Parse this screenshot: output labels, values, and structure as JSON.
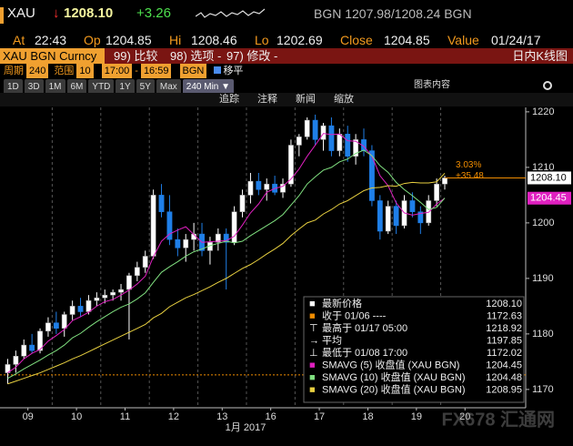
{
  "header": {
    "symbol": "XAU",
    "arrow": "↓",
    "price": "1208.10",
    "change": "+3.26",
    "quote": "BGN 1207.98/1208.24 BGN"
  },
  "stats": [
    {
      "label": "At",
      "value": "22:43"
    },
    {
      "label": "Op",
      "value": "1204.85"
    },
    {
      "label": "Hi",
      "value": "1208.46"
    },
    {
      "label": "Lo",
      "value": "1202.69"
    },
    {
      "label": "Close",
      "value": "1204.85"
    },
    {
      "label": "Value",
      "value": "01/24/17"
    }
  ],
  "toolbar": {
    "security": "XAU BGN Curncy",
    "items": [
      "99) 比较",
      "98) 选项 -",
      "97) 修改 -"
    ],
    "chart_name": "日内K线图"
  },
  "settings": {
    "period_label": "周期",
    "period": "240",
    "range_label": "范围",
    "range": "10",
    "start": "17:00",
    "dash": "-",
    "end": "16:59",
    "tz": "BGN",
    "smooth": "移平"
  },
  "ranges": [
    "1D",
    "3D",
    "1M",
    "6M",
    "YTD",
    "1Y",
    "5Y",
    "Max",
    "240 Min ▼"
  ],
  "chart_content": "图表内容",
  "actions": [
    "追踪",
    "注释",
    "新闻",
    "缩放"
  ],
  "watermark": "FX678 汇通网",
  "chart_data": {
    "type": "candlestick",
    "categories": [
      null,
      null,
      null,
      null,
      null,
      null,
      null,
      null,
      null,
      null,
      null,
      null,
      null,
      null,
      null,
      null,
      null,
      null,
      null,
      null,
      null,
      null,
      null,
      null,
      null,
      null,
      null,
      null,
      null,
      null,
      null,
      null,
      null,
      null,
      null,
      null,
      null,
      null,
      null,
      null,
      null,
      null,
      null,
      null,
      null,
      null,
      null,
      null,
      null,
      null,
      null,
      null,
      null,
      null,
      null
    ],
    "open": [
      1173,
      1174.5,
      1176,
      1178,
      1177,
      1180.5,
      1182,
      1181,
      1183.5,
      1185,
      1184,
      1186,
      1186.5,
      1187,
      1187.5,
      1188,
      1190.5,
      1192,
      1194,
      1205,
      1202,
      1197,
      1195.5,
      1197,
      1198,
      1195,
      1196.5,
      1198,
      1196.5,
      1202,
      1205,
      1207.5,
      1206,
      1207,
      1205.5,
      1207,
      1214,
      1215.5,
      1218.5,
      1215,
      1217.5,
      1213,
      1216,
      1212,
      1215,
      1213,
      1204,
      1198.5,
      1203,
      1199.5,
      1204,
      1202,
      1200,
      1204,
      1207
    ],
    "high": [
      1175.5,
      1177,
      1179,
      1180,
      1181,
      1183,
      1184,
      1184,
      1186,
      1186.5,
      1187,
      1187.5,
      1188,
      1188,
      1189,
      1191,
      1193,
      1195,
      1206,
      1207,
      1205,
      1199,
      1198,
      1200,
      1200,
      1197.5,
      1199,
      1199,
      1203,
      1206,
      1209,
      1209,
      1208,
      1208.5,
      1208,
      1215,
      1216,
      1219,
      1219.5,
      1218,
      1219,
      1217,
      1217.5,
      1216,
      1217,
      1214,
      1205,
      1204,
      1204,
      1205,
      1205.5,
      1203,
      1205,
      1208,
      1208.5
    ],
    "low": [
      1171,
      1173,
      1175.5,
      1176.5,
      1176.5,
      1179.5,
      1180,
      1179.5,
      1182.5,
      1183,
      1183.5,
      1185,
      1185.5,
      1186,
      1186,
      1179,
      1189.5,
      1191,
      1193.5,
      1201,
      1196,
      1194,
      1193,
      1195,
      1194,
      1192.5,
      1195,
      1188,
      1196,
      1201,
      1203.5,
      1205,
      1204,
      1205,
      1204.5,
      1206.5,
      1212,
      1215,
      1214,
      1213,
      1212,
      1212,
      1211,
      1210.5,
      1212,
      1203,
      1197,
      1198,
      1198,
      1199,
      1201,
      1198,
      1199.5,
      1203,
      1206
    ],
    "close": [
      1174.5,
      1176,
      1178,
      1177,
      1180.5,
      1182,
      1181,
      1183.5,
      1185,
      1184,
      1186,
      1186.5,
      1187,
      1187.5,
      1188,
      1190.5,
      1192,
      1194,
      1205,
      1202,
      1197,
      1195.5,
      1197,
      1198,
      1195,
      1196.5,
      1198,
      1196.5,
      1202,
      1205,
      1207.5,
      1206,
      1207,
      1205.5,
      1207,
      1214,
      1215.5,
      1218.5,
      1215,
      1217.5,
      1213,
      1216,
      1212,
      1215,
      1213,
      1204,
      1198.5,
      1203,
      1199.5,
      1204,
      1202,
      1200,
      1204,
      1207,
      1208.1
    ],
    "up_color": "#ffffff",
    "down_color": "#1f7fe8",
    "series": [
      {
        "name": "SMAVG (5) 收盘值 (XAU BGN)",
        "color": "#e020c0",
        "values": [
          1173,
          1174,
          1175.5,
          1176.5,
          1177.2,
          1178.7,
          1179.7,
          1180.8,
          1182.4,
          1183.1,
          1183.9,
          1185,
          1185.8,
          1186.2,
          1187,
          1187.9,
          1189,
          1190.4,
          1193.9,
          1196.7,
          1198,
          1198.7,
          1199.3,
          1197.9,
          1196.5,
          1196.6,
          1196.7,
          1196.8,
          1197.6,
          1199.6,
          1201.8,
          1203.4,
          1205.5,
          1206.2,
          1206.6,
          1207.9,
          1209.7,
          1212,
          1214,
          1216.1,
          1215.9,
          1216,
          1214.8,
          1214.7,
          1213.8,
          1212,
          1208.5,
          1206.7,
          1203.6,
          1201.8,
          1201.4,
          1201.7,
          1201.9,
          1203.4,
          1204.45
        ]
      },
      {
        "name": "SMAVG (10) 收盘值 (XAU BGN)",
        "color": "#80e080",
        "values": [
          1172,
          1172.8,
          1173.7,
          1174.5,
          1175.3,
          1176.2,
          1177,
          1178,
          1179.3,
          1180.1,
          1181.2,
          1182.2,
          1183.1,
          1184,
          1184.8,
          1185.4,
          1186.3,
          1187.4,
          1189.3,
          1191.1,
          1192.1,
          1193,
          1194,
          1194.8,
          1195.3,
          1195.9,
          1196.3,
          1196.7,
          1196.4,
          1196.7,
          1197.7,
          1198.6,
          1199.5,
          1200.4,
          1201.5,
          1203.2,
          1204.9,
          1207,
          1208.3,
          1209.5,
          1210,
          1211,
          1211.5,
          1212.5,
          1213.1,
          1212.1,
          1210.3,
          1209.1,
          1207.3,
          1206,
          1204.9,
          1203.7,
          1202.4,
          1202.8,
          1204.48
        ]
      },
      {
        "name": "SMAVG (20) 收盘值 (XAU BGN)",
        "color": "#e8d040",
        "values": [
          1171,
          1171.5,
          1172,
          1172.5,
          1173,
          1173.6,
          1174.2,
          1174.8,
          1175.5,
          1176.1,
          1176.8,
          1177.5,
          1178.2,
          1178.9,
          1179.6,
          1180.3,
          1181,
          1181.7,
          1182.9,
          1183.7,
          1184.9,
          1185.7,
          1186.5,
          1187.1,
          1187.8,
          1188.5,
          1189.3,
          1190,
          1190.9,
          1191.8,
          1192.5,
          1193.4,
          1194.4,
          1195.3,
          1196.3,
          1197.7,
          1198.9,
          1200,
          1200.5,
          1201.6,
          1202.4,
          1203.4,
          1204,
          1204.9,
          1205.8,
          1206.3,
          1206.4,
          1206.7,
          1206.6,
          1207.1,
          1207.3,
          1207.2,
          1207.2,
          1207.4,
          1208.95
        ]
      }
    ],
    "ref_line": 1172.63,
    "ref_color": "#f08c00",
    "ylim": [
      1166.7,
      1220.8
    ],
    "yticks": [
      1170,
      1180,
      1190,
      1200,
      1210,
      1220
    ],
    "xlim": [
      -0.5,
      64
    ],
    "xticks": [
      {
        "value": 2.5,
        "label": "09"
      },
      {
        "value": 8.5,
        "label": "10"
      },
      {
        "value": 14.5,
        "label": "11"
      },
      {
        "value": 20.5,
        "label": "12"
      },
      {
        "value": 26.5,
        "label": "13"
      },
      {
        "value": 32.5,
        "label": "16"
      },
      {
        "value": 38.5,
        "label": "17"
      },
      {
        "value": 44.5,
        "label": "18"
      },
      {
        "value": 50.5,
        "label": "19"
      },
      {
        "value": 56.5,
        "label": "20"
      }
    ],
    "xlabel": "1月 2017",
    "annotations": [
      "3.03%",
      "+35.48"
    ],
    "legend": [
      {
        "symbol": "■",
        "color": "#ffffff",
        "label": "最新价格",
        "value": "1208.10"
      },
      {
        "symbol": "■",
        "color": "#f08c00",
        "label": "收于 01/06 ----",
        "value": "1172.63"
      },
      {
        "symbol": "⊤",
        "color": "#ffffff",
        "label": "最高于 01/17 05:00",
        "value": "1218.92"
      },
      {
        "symbol": "→",
        "color": "#ffffff",
        "label": "平均",
        "value": "1197.85"
      },
      {
        "symbol": "⊥",
        "color": "#ffffff",
        "label": "最低于 01/08 17:00",
        "value": "1172.02"
      },
      {
        "symbol": "■",
        "color": "#e020c0",
        "label": "SMAVG (5) 收盘值 (XAU BGN)",
        "value": "1204.45"
      },
      {
        "symbol": "■",
        "color": "#80e080",
        "label": "SMAVG (10) 收盘值 (XAU BGN)",
        "value": "1204.48"
      },
      {
        "symbol": "■",
        "color": "#e8d040",
        "label": "SMAVG (20) 收盘值 (XAU BGN)",
        "value": "1208.95"
      }
    ]
  }
}
